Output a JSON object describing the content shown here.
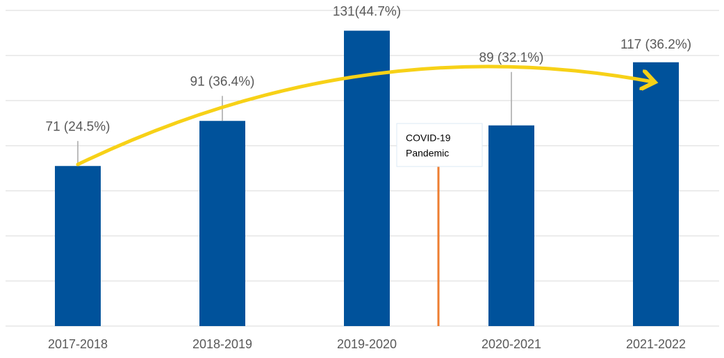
{
  "chart_data": {
    "type": "bar",
    "categories": [
      "2017-2018",
      "2018-2019",
      "2019-2020",
      "2020-2021",
      "2021-2022"
    ],
    "values": [
      71,
      91,
      131,
      89,
      117
    ],
    "value_labels": [
      "71 (24.5%)",
      "91 (36.4%)",
      "131(44.7%)",
      "89 (32.1%)",
      "117 (36.2%)"
    ],
    "color": "#00529b",
    "ylim": [
      0,
      140
    ],
    "yticks": [
      0,
      20,
      40,
      60,
      80,
      100,
      120,
      140
    ],
    "grid": true,
    "annotation": {
      "lines": [
        "COVID-19",
        "Pandemic"
      ]
    }
  }
}
